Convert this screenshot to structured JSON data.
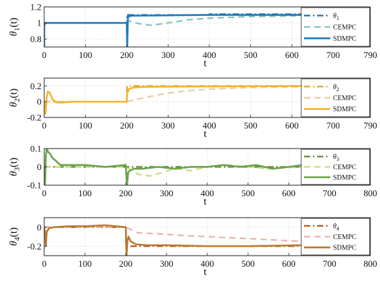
{
  "chart_data": [
    {
      "type": "line",
      "xlabel": "t",
      "ylabel": "θ1(t)",
      "ylabel_base": "θ",
      "ylabel_sub": "1",
      "ylabel_suffix": "(t)",
      "xlim": [
        0,
        790
      ],
      "ylim": [
        0.7,
        1.2
      ],
      "xticks": [
        0,
        100,
        200,
        300,
        400,
        500,
        600,
        700,
        790
      ],
      "yticks": [
        0.8,
        1,
        1.2
      ],
      "ytick_labels": [
        "0.8",
        "1",
        "1.2"
      ],
      "grid": true,
      "legend_position": "top-right",
      "series": [
        {
          "name": "θ1",
          "legend_base": "θ",
          "legend_sub": "1",
          "color": "#1f6fa8",
          "style": "dashdot",
          "x": [
            0,
            200,
            200.5,
            400,
            400.5,
            632
          ],
          "y": [
            1.0,
            1.0,
            1.1,
            1.1,
            1.11,
            1.11
          ]
        },
        {
          "name": "CEMPC",
          "color": "#7fc2bd",
          "style": "dashed",
          "x": [
            0,
            200,
            202,
            230,
            260,
            300,
            350,
            400,
            500,
            632
          ],
          "y": [
            1.0,
            1.0,
            1.03,
            0.99,
            0.97,
            1.0,
            1.04,
            1.06,
            1.08,
            1.09
          ]
        },
        {
          "name": "SDMPC",
          "color": "#1d7bbf",
          "style": "solid",
          "x": [
            0,
            0,
            2,
            4,
            200,
            201,
            203,
            205,
            210,
            400,
            632
          ],
          "y": [
            0.7,
            0.96,
            1.0,
            1.0,
            1.0,
            0.7,
            1.1,
            1.08,
            1.09,
            1.1,
            1.1
          ]
        }
      ]
    },
    {
      "type": "line",
      "xlabel": "t",
      "ylabel": "θ2(t)",
      "ylabel_base": "θ",
      "ylabel_sub": "2",
      "ylabel_suffix": "(t)",
      "xlim": [
        0,
        790
      ],
      "ylim": [
        -0.2,
        0.3
      ],
      "xticks": [
        0,
        100,
        200,
        300,
        400,
        500,
        600,
        700,
        790
      ],
      "yticks": [
        -0.2,
        0,
        0.2
      ],
      "ytick_labels": [
        "-0.2",
        "0",
        "0.2"
      ],
      "grid": true,
      "legend_position": "top-right",
      "series": [
        {
          "name": "θ2",
          "legend_base": "θ",
          "legend_sub": "2",
          "color": "#e3a01b",
          "style": "dashdot",
          "x": [
            0,
            200,
            200.5,
            632
          ],
          "y": [
            0.0,
            0.0,
            0.2,
            0.2
          ]
        },
        {
          "name": "CEMPC",
          "color": "#ecc9a3",
          "style": "dashed",
          "x": [
            0,
            200,
            250,
            300,
            350,
            400,
            500,
            632
          ],
          "y": [
            0.0,
            0.0,
            0.06,
            0.11,
            0.14,
            0.16,
            0.18,
            0.19
          ]
        },
        {
          "name": "SDMPC",
          "color": "#f2b52e",
          "style": "solid",
          "x": [
            0,
            3,
            6,
            9,
            14,
            20,
            30,
            45,
            70,
            100,
            200,
            201,
            205,
            215,
            250,
            632
          ],
          "y": [
            0.0,
            -0.15,
            0.05,
            0.13,
            0.11,
            0.03,
            -0.01,
            -0.01,
            0.0,
            0.0,
            0.0,
            0.1,
            0.16,
            0.18,
            0.19,
            0.2
          ]
        }
      ]
    },
    {
      "type": "line",
      "xlabel": "t",
      "ylabel": "θ3(t)",
      "ylabel_base": "θ",
      "ylabel_sub": "3",
      "ylabel_suffix": "(t)",
      "xlim": [
        0,
        800
      ],
      "ylim": [
        -0.1,
        0.1
      ],
      "xticks": [
        0,
        100,
        200,
        300,
        400,
        500,
        600,
        700,
        800
      ],
      "yticks": [
        -0.1,
        0,
        0.1
      ],
      "ytick_labels": [
        "-0.1",
        "0",
        "0.1"
      ],
      "grid": true,
      "legend_position": "top-right",
      "series": [
        {
          "name": "θ3",
          "legend_base": "θ",
          "legend_sub": "3",
          "color": "#5d8b2c",
          "style": "dashdot",
          "x": [
            0,
            632
          ],
          "y": [
            0.0,
            0.0
          ]
        },
        {
          "name": "CEMPC",
          "color": "#c9dc7d",
          "style": "dashed",
          "x": [
            0,
            200,
            230,
            260,
            290,
            320,
            360,
            400,
            450,
            500,
            550,
            632
          ],
          "y": [
            0.0,
            0.0,
            -0.04,
            -0.05,
            -0.03,
            -0.01,
            -0.02,
            0.0,
            0.01,
            0.0,
            -0.01,
            0.0
          ]
        },
        {
          "name": "SDMPC",
          "color": "#6aa24a",
          "style": "solid",
          "x": [
            0,
            2,
            4,
            6,
            10,
            15,
            20,
            30,
            40,
            60,
            100,
            150,
            200,
            203,
            206,
            210,
            220,
            240,
            280,
            320,
            360,
            400,
            440,
            480,
            520,
            560,
            600,
            632
          ],
          "y": [
            0.0,
            -0.1,
            0.06,
            0.1,
            0.08,
            0.07,
            0.05,
            0.03,
            0.01,
            0.01,
            0.01,
            0.0,
            0.01,
            -0.1,
            -0.03,
            -0.02,
            -0.01,
            -0.01,
            0.0,
            -0.01,
            0.0,
            0.0,
            0.01,
            0.0,
            0.01,
            -0.01,
            0.0,
            0.01
          ]
        }
      ]
    },
    {
      "type": "line",
      "xlabel": "t",
      "ylabel": "θ4(t)",
      "ylabel_base": "θ",
      "ylabel_sub": "4",
      "ylabel_suffix": "(t)",
      "xlim": [
        0,
        800
      ],
      "ylim": [
        -0.3,
        0.1
      ],
      "xticks": [
        0,
        100,
        200,
        300,
        400,
        500,
        600,
        700,
        800
      ],
      "yticks": [
        -0.2,
        0
      ],
      "ytick_labels": [
        "-0.2",
        "0"
      ],
      "grid": true,
      "legend_position": "top-right",
      "series": [
        {
          "name": "θ4",
          "legend_base": "θ",
          "legend_sub": "4",
          "color": "#b05a1a",
          "style": "dashdot",
          "x": [
            0,
            200,
            200.5,
            632
          ],
          "y": [
            0.0,
            0.0,
            -0.2,
            -0.2
          ]
        },
        {
          "name": "CEMPC",
          "color": "#e6b4ad",
          "style": "dashed",
          "x": [
            0,
            200,
            230,
            280,
            350,
            400,
            500,
            632
          ],
          "y": [
            0.0,
            0.0,
            -0.06,
            -0.07,
            -0.09,
            -0.1,
            -0.12,
            -0.15
          ]
        },
        {
          "name": "SDMPC",
          "color": "#b8792e",
          "style": "solid",
          "x": [
            0,
            2,
            4,
            6,
            12,
            25,
            60,
            100,
            150,
            200,
            202,
            204,
            207,
            212,
            225,
            250,
            300,
            400,
            500,
            632
          ],
          "y": [
            0.0,
            -0.05,
            -0.2,
            -0.05,
            -0.01,
            0.0,
            0.01,
            0.01,
            0.02,
            0.0,
            -0.3,
            -0.15,
            -0.1,
            -0.15,
            -0.18,
            -0.19,
            -0.19,
            -0.2,
            -0.2,
            -0.19
          ]
        }
      ]
    }
  ]
}
